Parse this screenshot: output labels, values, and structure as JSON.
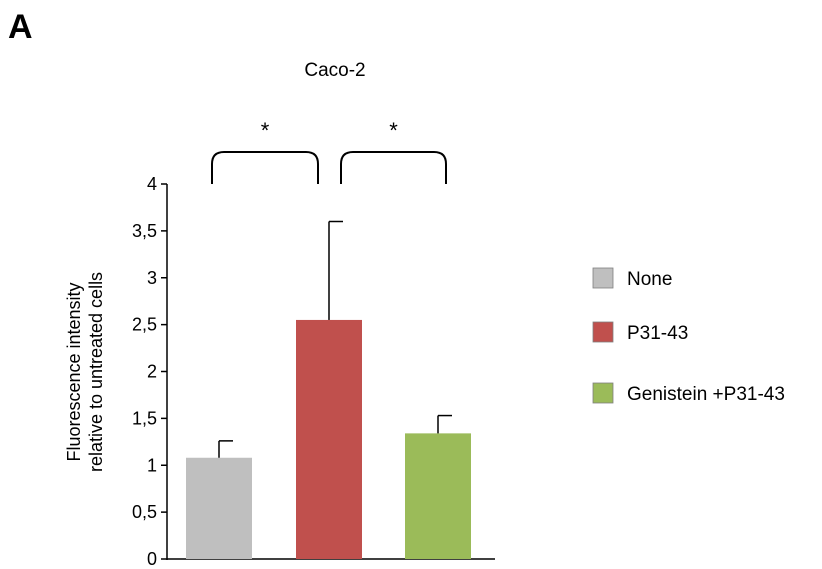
{
  "panel_label": "A",
  "chart_data": {
    "type": "bar",
    "title": "Caco-2",
    "ylabel_lines": [
      "Fluorescence intensity",
      "relative to untreated cells"
    ],
    "xlabel": "",
    "ylim": [
      0,
      4
    ],
    "yticks": [
      "0",
      "0,5",
      "1",
      "1,5",
      "2",
      "2,5",
      "3",
      "3,5",
      "4"
    ],
    "categories": [
      "None",
      "P31-43",
      "Genistein +P31-43"
    ],
    "values": [
      1.08,
      2.55,
      1.34
    ],
    "errors": [
      0.18,
      1.05,
      0.19
    ],
    "colors": [
      "#bfbfbf",
      "#c0504d",
      "#9bbb59"
    ],
    "legend_position": "right",
    "significance": [
      {
        "from": 0,
        "to": 1,
        "label": "*"
      },
      {
        "from": 1,
        "to": 2,
        "label": "*"
      }
    ],
    "grid": false
  }
}
